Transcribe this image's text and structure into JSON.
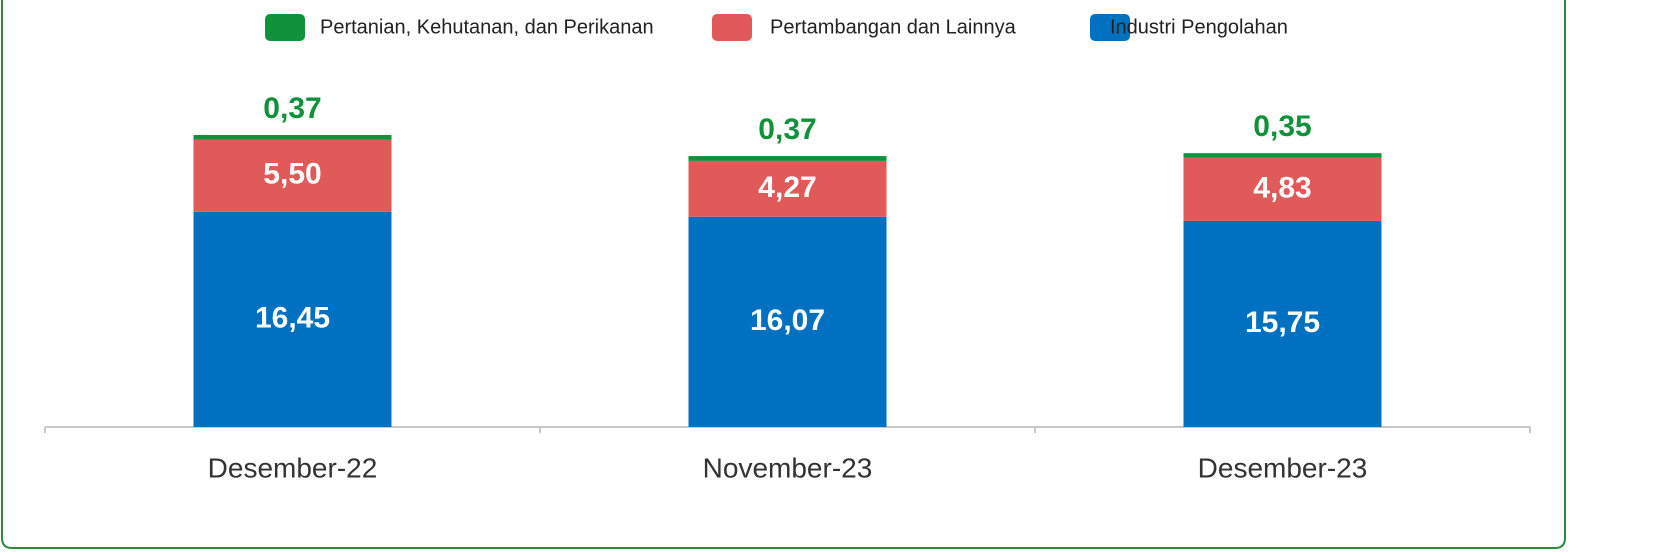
{
  "chart_data": {
    "type": "stacked_bar",
    "categories": [
      "Desember-22",
      "November-23",
      "Desember-23"
    ],
    "series": [
      {
        "name": "Industri Pengolahan",
        "color": "#0070c0",
        "values": [
          16.45,
          16.07,
          15.75
        ],
        "value_labels": [
          "16,45",
          "16,07",
          "15,75"
        ]
      },
      {
        "name": "Pertambangan dan Lainnya",
        "color": "#e05a5a",
        "values": [
          5.5,
          4.27,
          4.83
        ],
        "value_labels": [
          "5,50",
          "4,27",
          "4,83"
        ]
      },
      {
        "name": "Pertanian, Kehutanan, dan Perikanan",
        "color": "#12913c",
        "values": [
          0.37,
          0.37,
          0.35
        ],
        "value_labels": [
          "0,37",
          "0,37",
          "0,35"
        ]
      }
    ],
    "legend": "top"
  }
}
